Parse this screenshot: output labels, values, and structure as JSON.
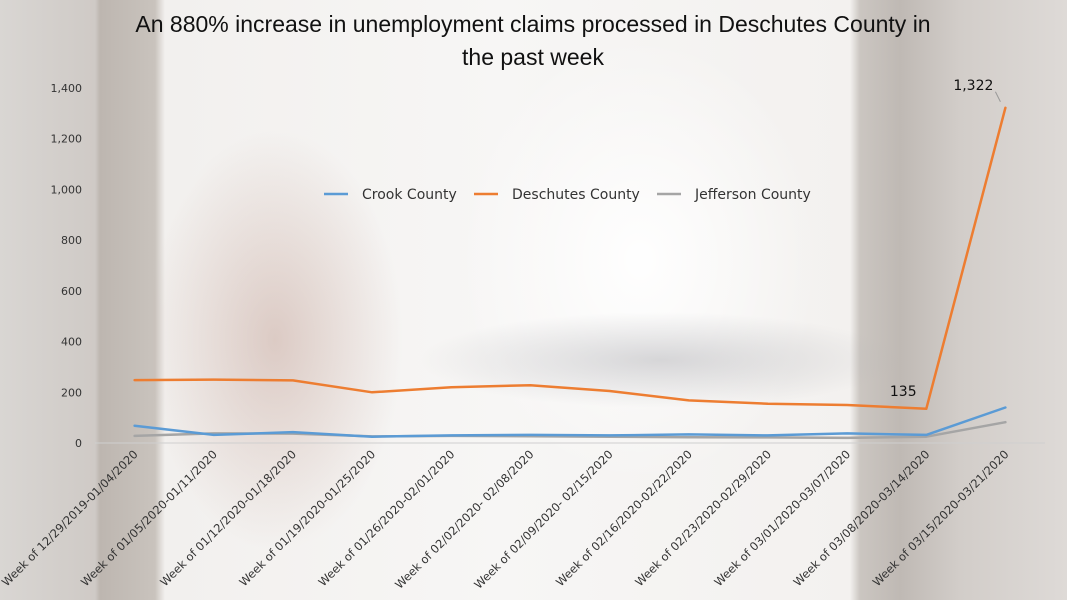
{
  "chart_data": {
    "type": "line",
    "title_lines": [
      "An 880% increase in unemployment claims processed in Deschutes County in",
      "the past week"
    ],
    "categories": [
      "Week of 12/29/2019-01/04/2020",
      "Week of 01/05/2020-01/11/2020",
      "Week of 01/12/2020-01/18/2020",
      "Week of 01/19/2020-01/25/2020",
      "Week of 01/26/2020-02/01/2020",
      "Week of 02/02/2020- 02/08/2020",
      "Week of 02/09/2020- 02/15/2020",
      "Week of 02/16/2020-02/22/2020",
      "Week of 02/23/2020-02/29/2020",
      "Week of 03/01/2020-03/07/2020",
      "Week of 03/08/2020-03/14/2020",
      "Week of 03/15/2020-03/21/2020"
    ],
    "series": [
      {
        "name": "Crook County",
        "color": "#5b9bd5",
        "values": [
          68,
          32,
          43,
          25,
          30,
          32,
          30,
          34,
          30,
          38,
          32,
          140
        ]
      },
      {
        "name": "Deschutes County",
        "color": "#ed7d31",
        "values": [
          248,
          250,
          247,
          200,
          220,
          228,
          205,
          168,
          155,
          150,
          135,
          1322
        ]
      },
      {
        "name": "Jefferson County",
        "color": "#a5a5a5",
        "values": [
          28,
          38,
          37,
          26,
          28,
          27,
          25,
          23,
          22,
          20,
          25,
          82
        ]
      }
    ],
    "ylim": [
      0,
      1400
    ],
    "yticks": [
      0,
      200,
      400,
      600,
      800,
      1000,
      1200,
      1400
    ],
    "ytick_labels": [
      "0",
      "200",
      "400",
      "600",
      "800",
      "1,000",
      "1,200",
      "1,400"
    ],
    "grid": false,
    "legend_position": "top-center",
    "annotations": [
      {
        "series": "Deschutes County",
        "index": 10,
        "text": "135"
      },
      {
        "series": "Deschutes County",
        "index": 11,
        "text": "1,322"
      }
    ]
  }
}
